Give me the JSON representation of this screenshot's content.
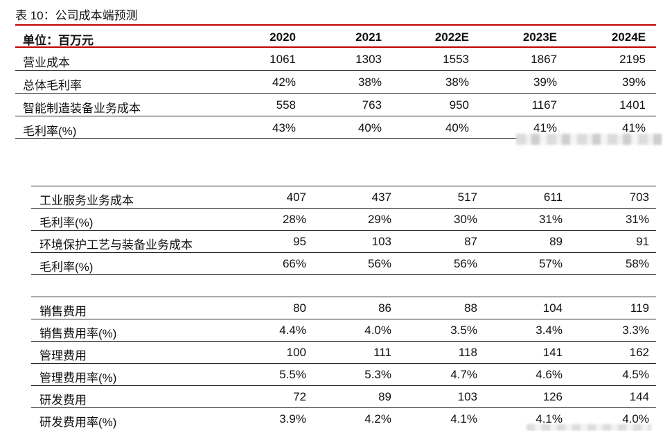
{
  "title": "表 10：公司成本端预测",
  "header": {
    "label": "单位：百万元",
    "years": [
      "2020",
      "2021",
      "2022E",
      "2023E",
      "2024E"
    ]
  },
  "group1": [
    {
      "label": "营业成本",
      "values": [
        "1061",
        "1303",
        "1553",
        "1867",
        "2195"
      ]
    },
    {
      "label": "总体毛利率",
      "values": [
        "42%",
        "38%",
        "38%",
        "39%",
        "39%"
      ]
    },
    {
      "label": "智能制造装备业务成本",
      "values": [
        "558",
        "763",
        "950",
        "1167",
        "1401"
      ]
    },
    {
      "label": "毛利率(%)",
      "values": [
        "43%",
        "40%",
        "40%",
        "41%",
        "41%"
      ]
    }
  ],
  "group2": [
    {
      "label": "工业服务业务成本",
      "values": [
        "407",
        "437",
        "517",
        "611",
        "703"
      ]
    },
    {
      "label": "毛利率(%)",
      "values": [
        "28%",
        "29%",
        "30%",
        "31%",
        "31%"
      ]
    },
    {
      "label": "环境保护工艺与装备业务成本",
      "values": [
        "95",
        "103",
        "87",
        "89",
        "91"
      ]
    },
    {
      "label": "毛利率(%)",
      "values": [
        "66%",
        "56%",
        "56%",
        "57%",
        "58%"
      ]
    }
  ],
  "group3": [
    {
      "label": "销售费用",
      "values": [
        "80",
        "86",
        "88",
        "104",
        "119"
      ]
    },
    {
      "label": "销售费用率(%)",
      "values": [
        "4.4%",
        "4.0%",
        "3.5%",
        "3.4%",
        "3.3%"
      ]
    },
    {
      "label": "管理费用",
      "values": [
        "100",
        "111",
        "118",
        "141",
        "162"
      ]
    },
    {
      "label": "管理费用率(%)",
      "values": [
        "5.5%",
        "5.3%",
        "4.7%",
        "4.6%",
        "4.5%"
      ]
    },
    {
      "label": "研发费用",
      "values": [
        "72",
        "89",
        "103",
        "126",
        "144"
      ]
    },
    {
      "label": "研发费用率(%)",
      "values": [
        "3.9%",
        "4.2%",
        "4.1%",
        "4.1%",
        "4.0%"
      ]
    }
  ]
}
